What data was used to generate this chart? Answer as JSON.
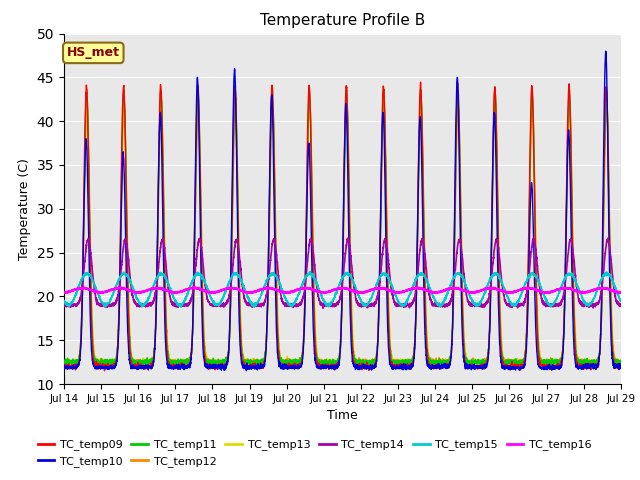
{
  "title": "Temperature Profile B",
  "xlabel": "Time",
  "ylabel": "Temperature (C)",
  "annotation": "HS_met",
  "ylim": [
    10,
    50
  ],
  "series_colors": {
    "TC_temp09": "#ff0000",
    "TC_temp10": "#0000dd",
    "TC_temp11": "#00cc00",
    "TC_temp12": "#ff8800",
    "TC_temp13": "#dddd00",
    "TC_temp14": "#aa00aa",
    "TC_temp15": "#00cccc",
    "TC_temp16": "#ff00ff"
  },
  "x_tick_labels": [
    "Jul 14",
    "Jul 15",
    "Jul 16",
    "Jul 17",
    "Jul 18",
    "Jul 19",
    "Jul 20",
    "Jul 21",
    "Jul 22",
    "Jul 23",
    "Jul 24",
    "Jul 25",
    "Jul 26",
    "Jul 27",
    "Jul 28",
    "Jul 29"
  ],
  "n_days": 15,
  "peak_heights_blue": [
    38,
    36.5,
    41,
    45,
    46,
    43,
    37.5,
    42,
    41,
    40.5,
    45,
    41,
    33,
    39,
    48
  ],
  "background_color": "#e8e8e8",
  "grid_color": "#ffffff"
}
